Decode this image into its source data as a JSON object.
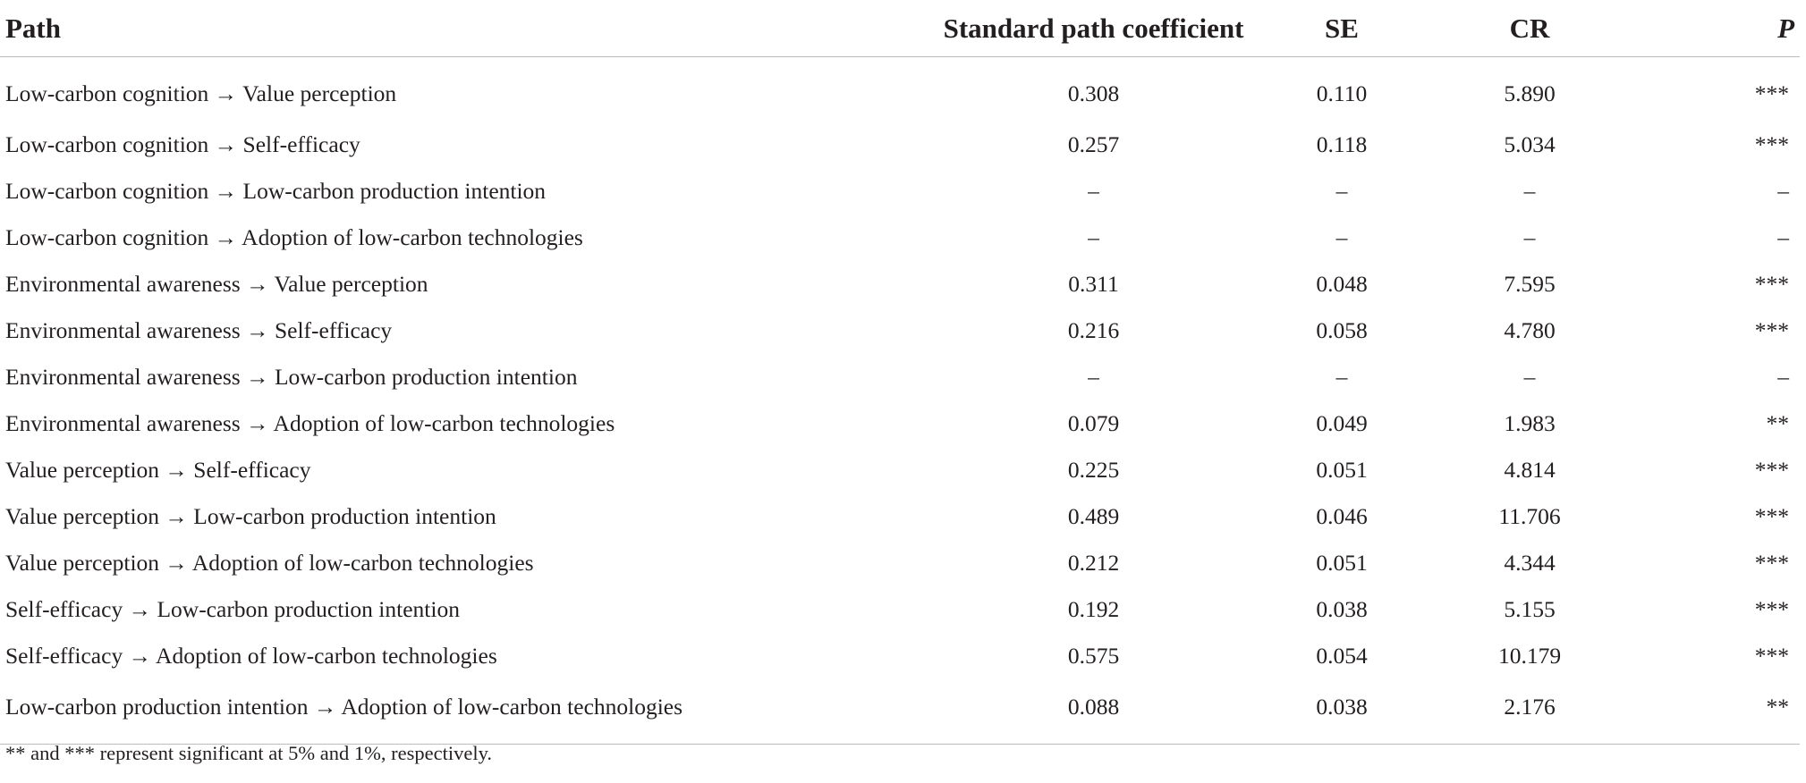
{
  "table": {
    "headers": {
      "path": "Path",
      "coef": "Standard path coefficient",
      "se": "SE",
      "cr": "CR",
      "p": "P"
    },
    "rows": [
      {
        "path": "Low-carbon cognition → Value perception",
        "coef": "0.308",
        "se": "0.110",
        "cr": "5.890",
        "p": "***"
      },
      {
        "path": "Low-carbon cognition → Self-efficacy",
        "coef": "0.257",
        "se": "0.118",
        "cr": "5.034",
        "p": "***"
      },
      {
        "path": "Low-carbon cognition → Low-carbon production intention",
        "coef": "–",
        "se": "–",
        "cr": "–",
        "p": "–"
      },
      {
        "path": "Low-carbon cognition → Adoption of low-carbon technologies",
        "coef": "–",
        "se": "–",
        "cr": "–",
        "p": "–"
      },
      {
        "path": "Environmental awareness → Value perception",
        "coef": "0.311",
        "se": "0.048",
        "cr": "7.595",
        "p": "***"
      },
      {
        "path": "Environmental awareness → Self-efficacy",
        "coef": "0.216",
        "se": "0.058",
        "cr": "4.780",
        "p": "***"
      },
      {
        "path": "Environmental awareness → Low-carbon production intention",
        "coef": "–",
        "se": "–",
        "cr": "–",
        "p": "–"
      },
      {
        "path": "Environmental awareness → Adoption of low-carbon technologies",
        "coef": "0.079",
        "se": "0.049",
        "cr": "1.983",
        "p": "**"
      },
      {
        "path": "Value perception → Self-efficacy",
        "coef": "0.225",
        "se": "0.051",
        "cr": "4.814",
        "p": "***"
      },
      {
        "path": "Value perception → Low-carbon production intention",
        "coef": "0.489",
        "se": "0.046",
        "cr": "11.706",
        "p": "***"
      },
      {
        "path": "Value perception → Adoption of low-carbon technologies",
        "coef": "0.212",
        "se": "0.051",
        "cr": "4.344",
        "p": "***"
      },
      {
        "path": "Self-efficacy → Low-carbon production intention",
        "coef": "0.192",
        "se": "0.038",
        "cr": "5.155",
        "p": "***"
      },
      {
        "path": "Self-efficacy → Adoption of low-carbon technologies",
        "coef": "0.575",
        "se": "0.054",
        "cr": "10.179",
        "p": "***"
      },
      {
        "path": "Low-carbon production intention → Adoption of low-carbon technologies",
        "coef": "0.088",
        "se": "0.038",
        "cr": "2.176",
        "p": "**"
      }
    ]
  },
  "footnote": "** and *** represent significant at 5% and 1%, respectively."
}
